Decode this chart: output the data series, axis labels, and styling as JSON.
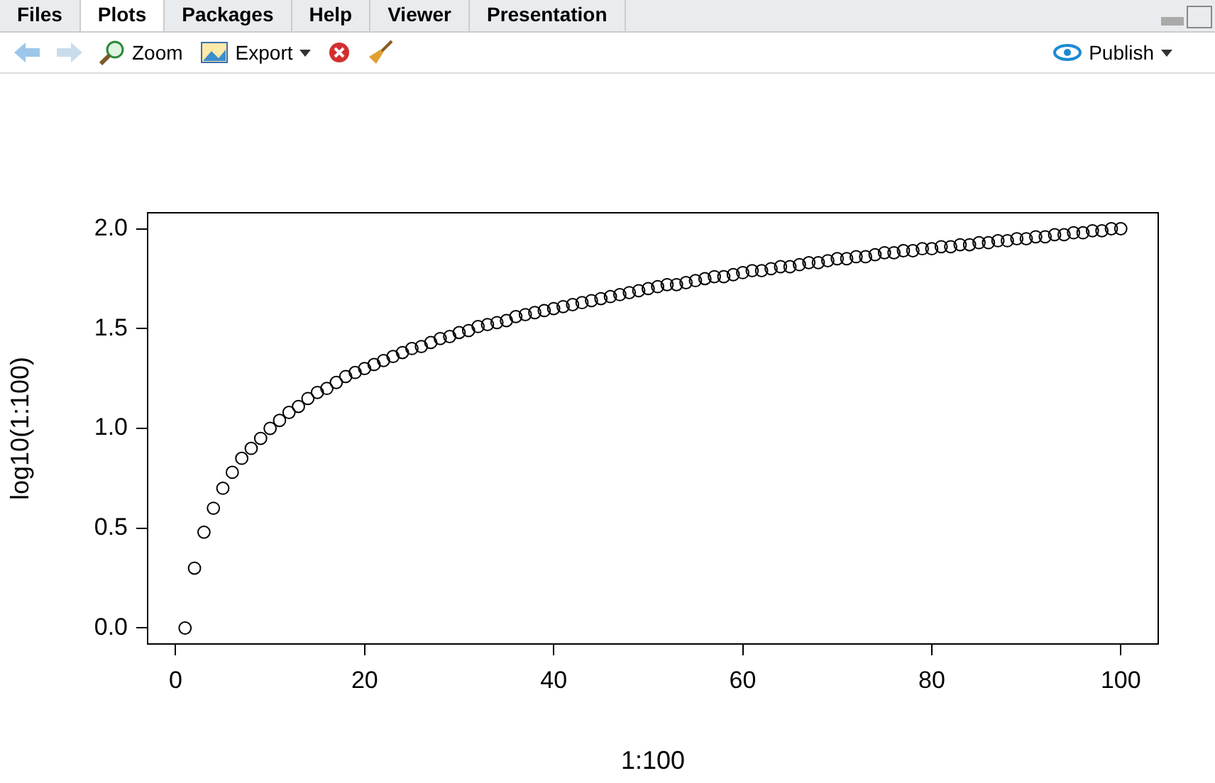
{
  "chart_data": {
    "type": "scatter",
    "xlabel": "1:100",
    "ylabel": "log10(1:100)",
    "annotations": [
      "Files",
      "Plots",
      "Packages",
      "Help",
      "Viewer",
      "Presentation",
      "Zoom",
      "Export",
      "Publish"
    ],
    "x": [
      1,
      2,
      3,
      4,
      5,
      6,
      7,
      8,
      9,
      10,
      11,
      12,
      13,
      14,
      15,
      16,
      17,
      18,
      19,
      20,
      21,
      22,
      23,
      24,
      25,
      26,
      27,
      28,
      29,
      30,
      31,
      32,
      33,
      34,
      35,
      36,
      37,
      38,
      39,
      40,
      41,
      42,
      43,
      44,
      45,
      46,
      47,
      48,
      49,
      50,
      51,
      52,
      53,
      54,
      55,
      56,
      57,
      58,
      59,
      60,
      61,
      62,
      63,
      64,
      65,
      66,
      67,
      68,
      69,
      70,
      71,
      72,
      73,
      74,
      75,
      76,
      77,
      78,
      79,
      80,
      81,
      82,
      83,
      84,
      85,
      86,
      87,
      88,
      89,
      90,
      91,
      92,
      93,
      94,
      95,
      96,
      97,
      98,
      99,
      100
    ],
    "series": [
      {
        "color": "#000000",
        "values": [
          0,
          0.3,
          0.48,
          0.6,
          0.7,
          0.78,
          0.85,
          0.9,
          0.95,
          1.0,
          1.04,
          1.08,
          1.11,
          1.15,
          1.18,
          1.2,
          1.23,
          1.26,
          1.28,
          1.3,
          1.32,
          1.34,
          1.36,
          1.38,
          1.4,
          1.41,
          1.43,
          1.45,
          1.46,
          1.48,
          1.49,
          1.51,
          1.52,
          1.53,
          1.54,
          1.56,
          1.57,
          1.58,
          1.59,
          1.6,
          1.61,
          1.62,
          1.63,
          1.64,
          1.65,
          1.66,
          1.67,
          1.68,
          1.69,
          1.7,
          1.71,
          1.72,
          1.72,
          1.73,
          1.74,
          1.75,
          1.76,
          1.76,
          1.77,
          1.78,
          1.79,
          1.79,
          1.8,
          1.81,
          1.81,
          1.82,
          1.83,
          1.83,
          1.84,
          1.85,
          1.85,
          1.86,
          1.86,
          1.87,
          1.88,
          1.88,
          1.89,
          1.89,
          1.9,
          1.9,
          1.91,
          1.91,
          1.92,
          1.92,
          1.93,
          1.93,
          1.94,
          1.94,
          1.95,
          1.95,
          1.96,
          1.96,
          1.97,
          1.97,
          1.98,
          1.98,
          1.99,
          1.99,
          2.0,
          2.0
        ]
      }
    ],
    "xlim": [
      -2.96,
      103.96
    ],
    "xticks": [
      0,
      20,
      40,
      60,
      80,
      100
    ],
    "ylim": [
      -0.08,
      2.08
    ],
    "yticks": [
      {
        "value": 0,
        "label": "0.0"
      },
      {
        "value": 0.5,
        "label": "0.5"
      },
      {
        "value": 1,
        "label": "1.0"
      },
      {
        "value": 1.5,
        "label": "1.5"
      },
      {
        "value": 2,
        "label": "2.0"
      }
    ],
    "grid": false,
    "legend": false,
    "marker": "circle"
  }
}
